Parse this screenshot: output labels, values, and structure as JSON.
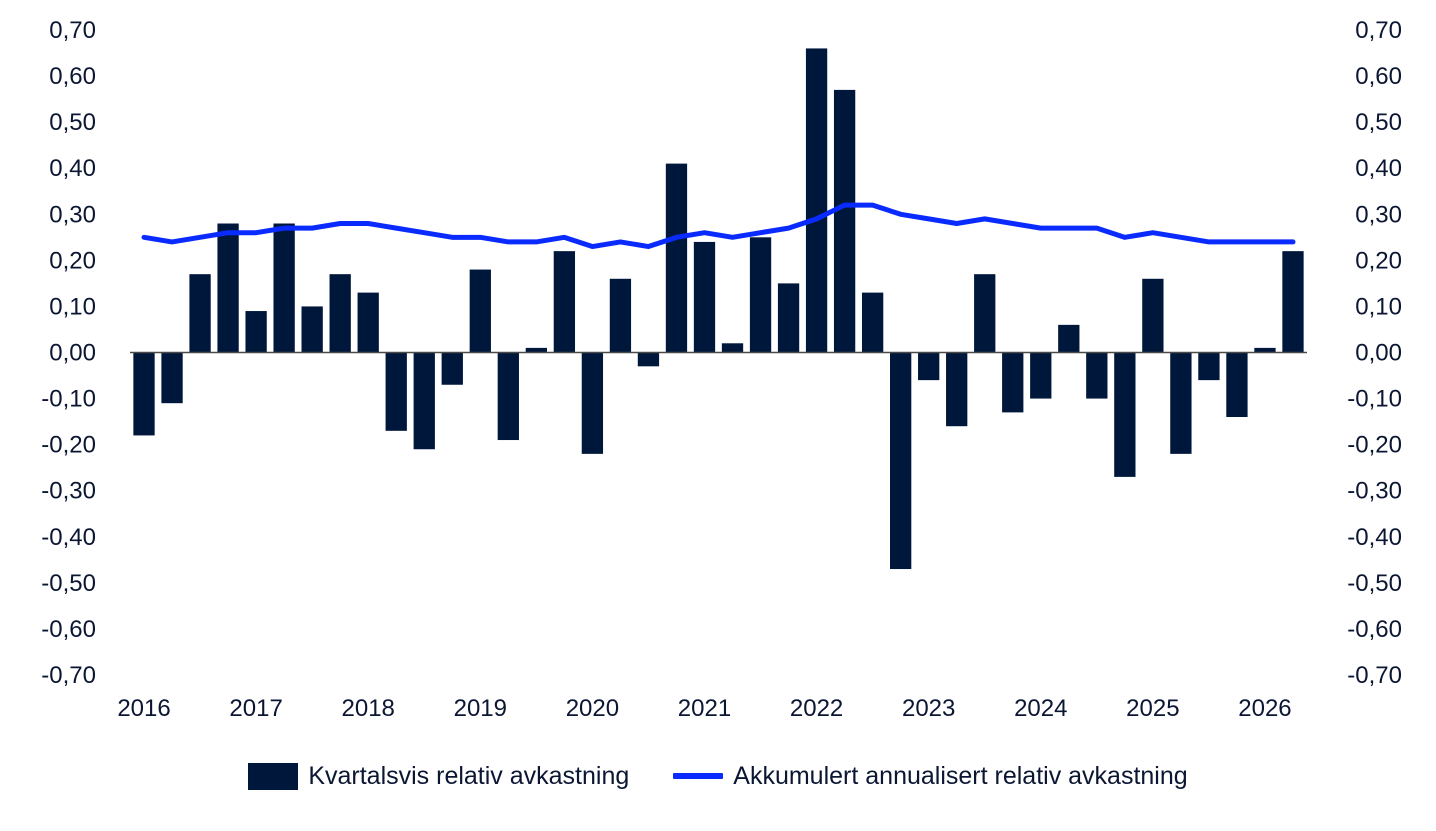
{
  "chart_data": {
    "type": "bar",
    "x_tick_labels": [
      "2016",
      "2017",
      "2018",
      "2019",
      "2020",
      "2021",
      "2022",
      "2023",
      "2024",
      "2025",
      "2026"
    ],
    "y_tick_labels": [
      "0,70",
      "0,60",
      "0,50",
      "0,40",
      "0,30",
      "0,20",
      "0,10",
      "0,00",
      "-0,10",
      "-0,20",
      "-0,30",
      "-0,40",
      "-0,50",
      "-0,60",
      "-0,70"
    ],
    "ylim": [
      -0.7,
      0.7
    ],
    "secondary_ylim": [
      -0.7,
      0.7
    ],
    "grid": false,
    "legend_position": "bottom-center",
    "colors": {
      "bars": "#00173c",
      "line": "#0a2bff",
      "axis": "#4a4a4a",
      "text": "#0b1633"
    },
    "series": [
      {
        "name": "Kvartalsvis relativ avkastning",
        "type": "bar",
        "values": [
          -0.18,
          -0.11,
          0.17,
          0.28,
          0.09,
          0.28,
          0.1,
          0.17,
          0.13,
          -0.17,
          -0.21,
          -0.07,
          0.18,
          -0.19,
          0.01,
          0.22,
          -0.22,
          0.16,
          -0.03,
          0.41,
          0.24,
          0.02,
          0.25,
          0.15,
          0.66,
          0.57,
          0.13,
          -0.47,
          -0.06,
          -0.16,
          0.17,
          -0.13,
          -0.1,
          0.06,
          -0.1,
          -0.27,
          0.16,
          -0.22,
          -0.06,
          -0.14,
          0.01,
          0.22
        ]
      },
      {
        "name": "Akkumulert annualisert relativ avkastning",
        "type": "line",
        "values": [
          0.25,
          0.24,
          0.25,
          0.26,
          0.26,
          0.27,
          0.27,
          0.28,
          0.28,
          0.27,
          0.26,
          0.25,
          0.25,
          0.24,
          0.24,
          0.25,
          0.23,
          0.24,
          0.23,
          0.25,
          0.26,
          0.25,
          0.26,
          0.27,
          0.29,
          0.32,
          0.32,
          0.3,
          0.29,
          0.28,
          0.29,
          0.28,
          0.27,
          0.27,
          0.27,
          0.25,
          0.26,
          0.25,
          0.24,
          0.24,
          0.24,
          0.24
        ]
      }
    ]
  }
}
